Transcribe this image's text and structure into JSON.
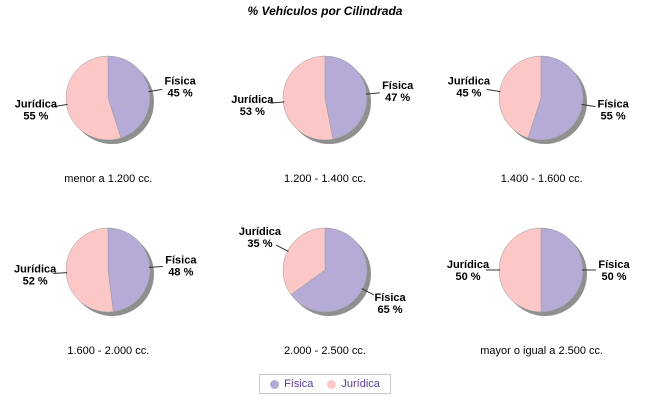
{
  "chart_data": {
    "type": "pie",
    "title": "% Vehículos por Cilindrada",
    "legend": [
      "Física",
      "Jurídica"
    ],
    "legend_position": "bottom",
    "value_suffix": " %",
    "colors": {
      "Física": "#b5abd6",
      "Jurídica": "#fbc8c7"
    },
    "shadow_color": "#8f8f8f",
    "slice_stroke": "#9b9b9b",
    "leader_line_color": "#333333",
    "label_color": "#000000",
    "legend_text_color": "#533d94",
    "legend_border_color": "#c6c6ce",
    "charts": [
      {
        "category": "menor a 1.200 cc.",
        "values": {
          "Física": 45,
          "Jurídica": 55
        }
      },
      {
        "category": "1.200 - 1.400 cc.",
        "values": {
          "Física": 47,
          "Jurídica": 53
        }
      },
      {
        "category": "1.400 - 1.600 cc.",
        "values": {
          "Física": 55,
          "Jurídica": 45
        }
      },
      {
        "category": "1.600 - 2.000 cc.",
        "values": {
          "Física": 48,
          "Jurídica": 52
        }
      },
      {
        "category": "2.000 - 2.500 cc.",
        "values": {
          "Física": 65,
          "Jurídica": 35
        }
      },
      {
        "category": "mayor o igual a 2.500 cc.",
        "values": {
          "Física": 50,
          "Jurídica": 50
        }
      }
    ]
  }
}
